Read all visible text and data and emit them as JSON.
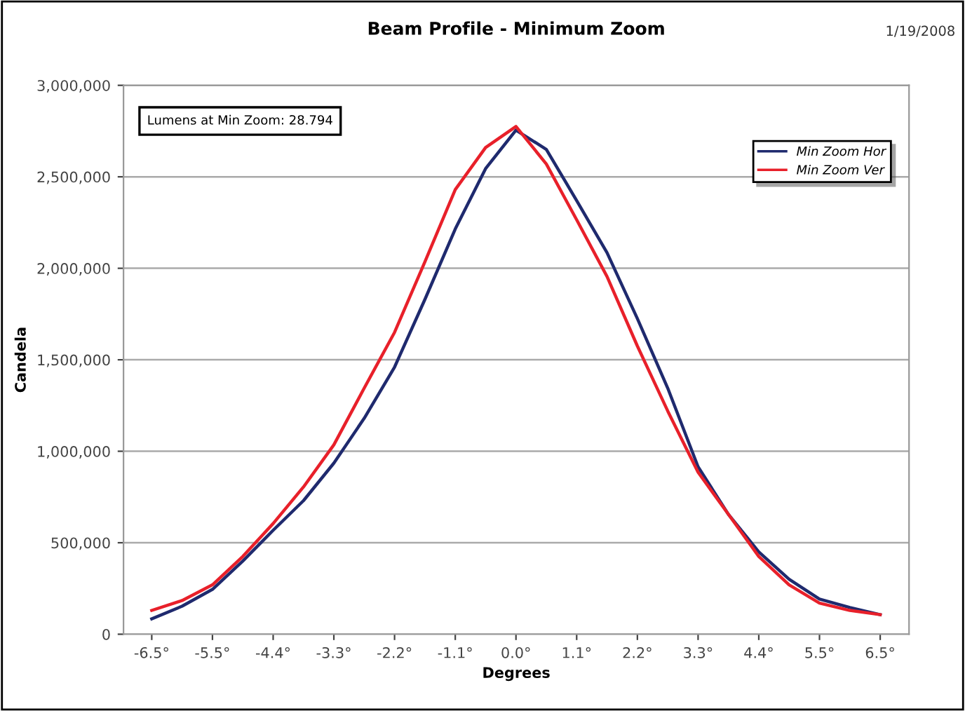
{
  "chart_data": {
    "type": "line",
    "title": "Beam Profile - Minimum Zoom",
    "xlabel": "Degrees",
    "ylabel": "Candela",
    "annotations": [
      "Lumens at Min Zoom: 28.794",
      "1/19/2008"
    ],
    "categories": [
      "-6.5°",
      null,
      "-5.5°",
      null,
      "-4.4°",
      null,
      "-3.3°",
      null,
      "-2.2°",
      null,
      "-1.1°",
      null,
      "0.0°",
      null,
      "1.1°",
      null,
      "2.2°",
      null,
      "3.3°",
      null,
      "4.4°",
      null,
      "5.5°",
      null,
      "6.5°"
    ],
    "series": [
      {
        "name": "Min Zoom Hor",
        "color": "#1f2a6e",
        "values": [
          84000,
          153000,
          245000,
          400000,
          568000,
          730000,
          935000,
          1180000,
          1460000,
          1830000,
          2215000,
          2545000,
          2755000,
          2650000,
          2370000,
          2085000,
          1725000,
          1345000,
          915000,
          655000,
          450000,
          300000,
          192000,
          146000,
          107000
        ]
      },
      {
        "name": "Min Zoom Ver",
        "color": "#e8202a",
        "values": [
          130000,
          184000,
          270000,
          425000,
          605000,
          805000,
          1035000,
          1345000,
          1650000,
          2035000,
          2430000,
          2660000,
          2775000,
          2570000,
          2265000,
          1955000,
          1575000,
          1220000,
          885000,
          655000,
          425000,
          270000,
          170000,
          130000,
          107000
        ]
      }
    ],
    "ylim": [
      0,
      3000000
    ],
    "yticks": [
      {
        "value": 0,
        "label": "0"
      },
      {
        "value": 500000,
        "label": "500,000"
      },
      {
        "value": 1000000,
        "label": "1,000,000"
      },
      {
        "value": 1500000,
        "label": "1,500,000"
      },
      {
        "value": 2000000,
        "label": "2,000,000"
      },
      {
        "value": 2500000,
        "label": "2,500,000"
      },
      {
        "value": 3000000,
        "label": "3,000,000"
      }
    ],
    "grid": "y",
    "legend": "top right",
    "marker": "none",
    "line_style": "solid"
  }
}
